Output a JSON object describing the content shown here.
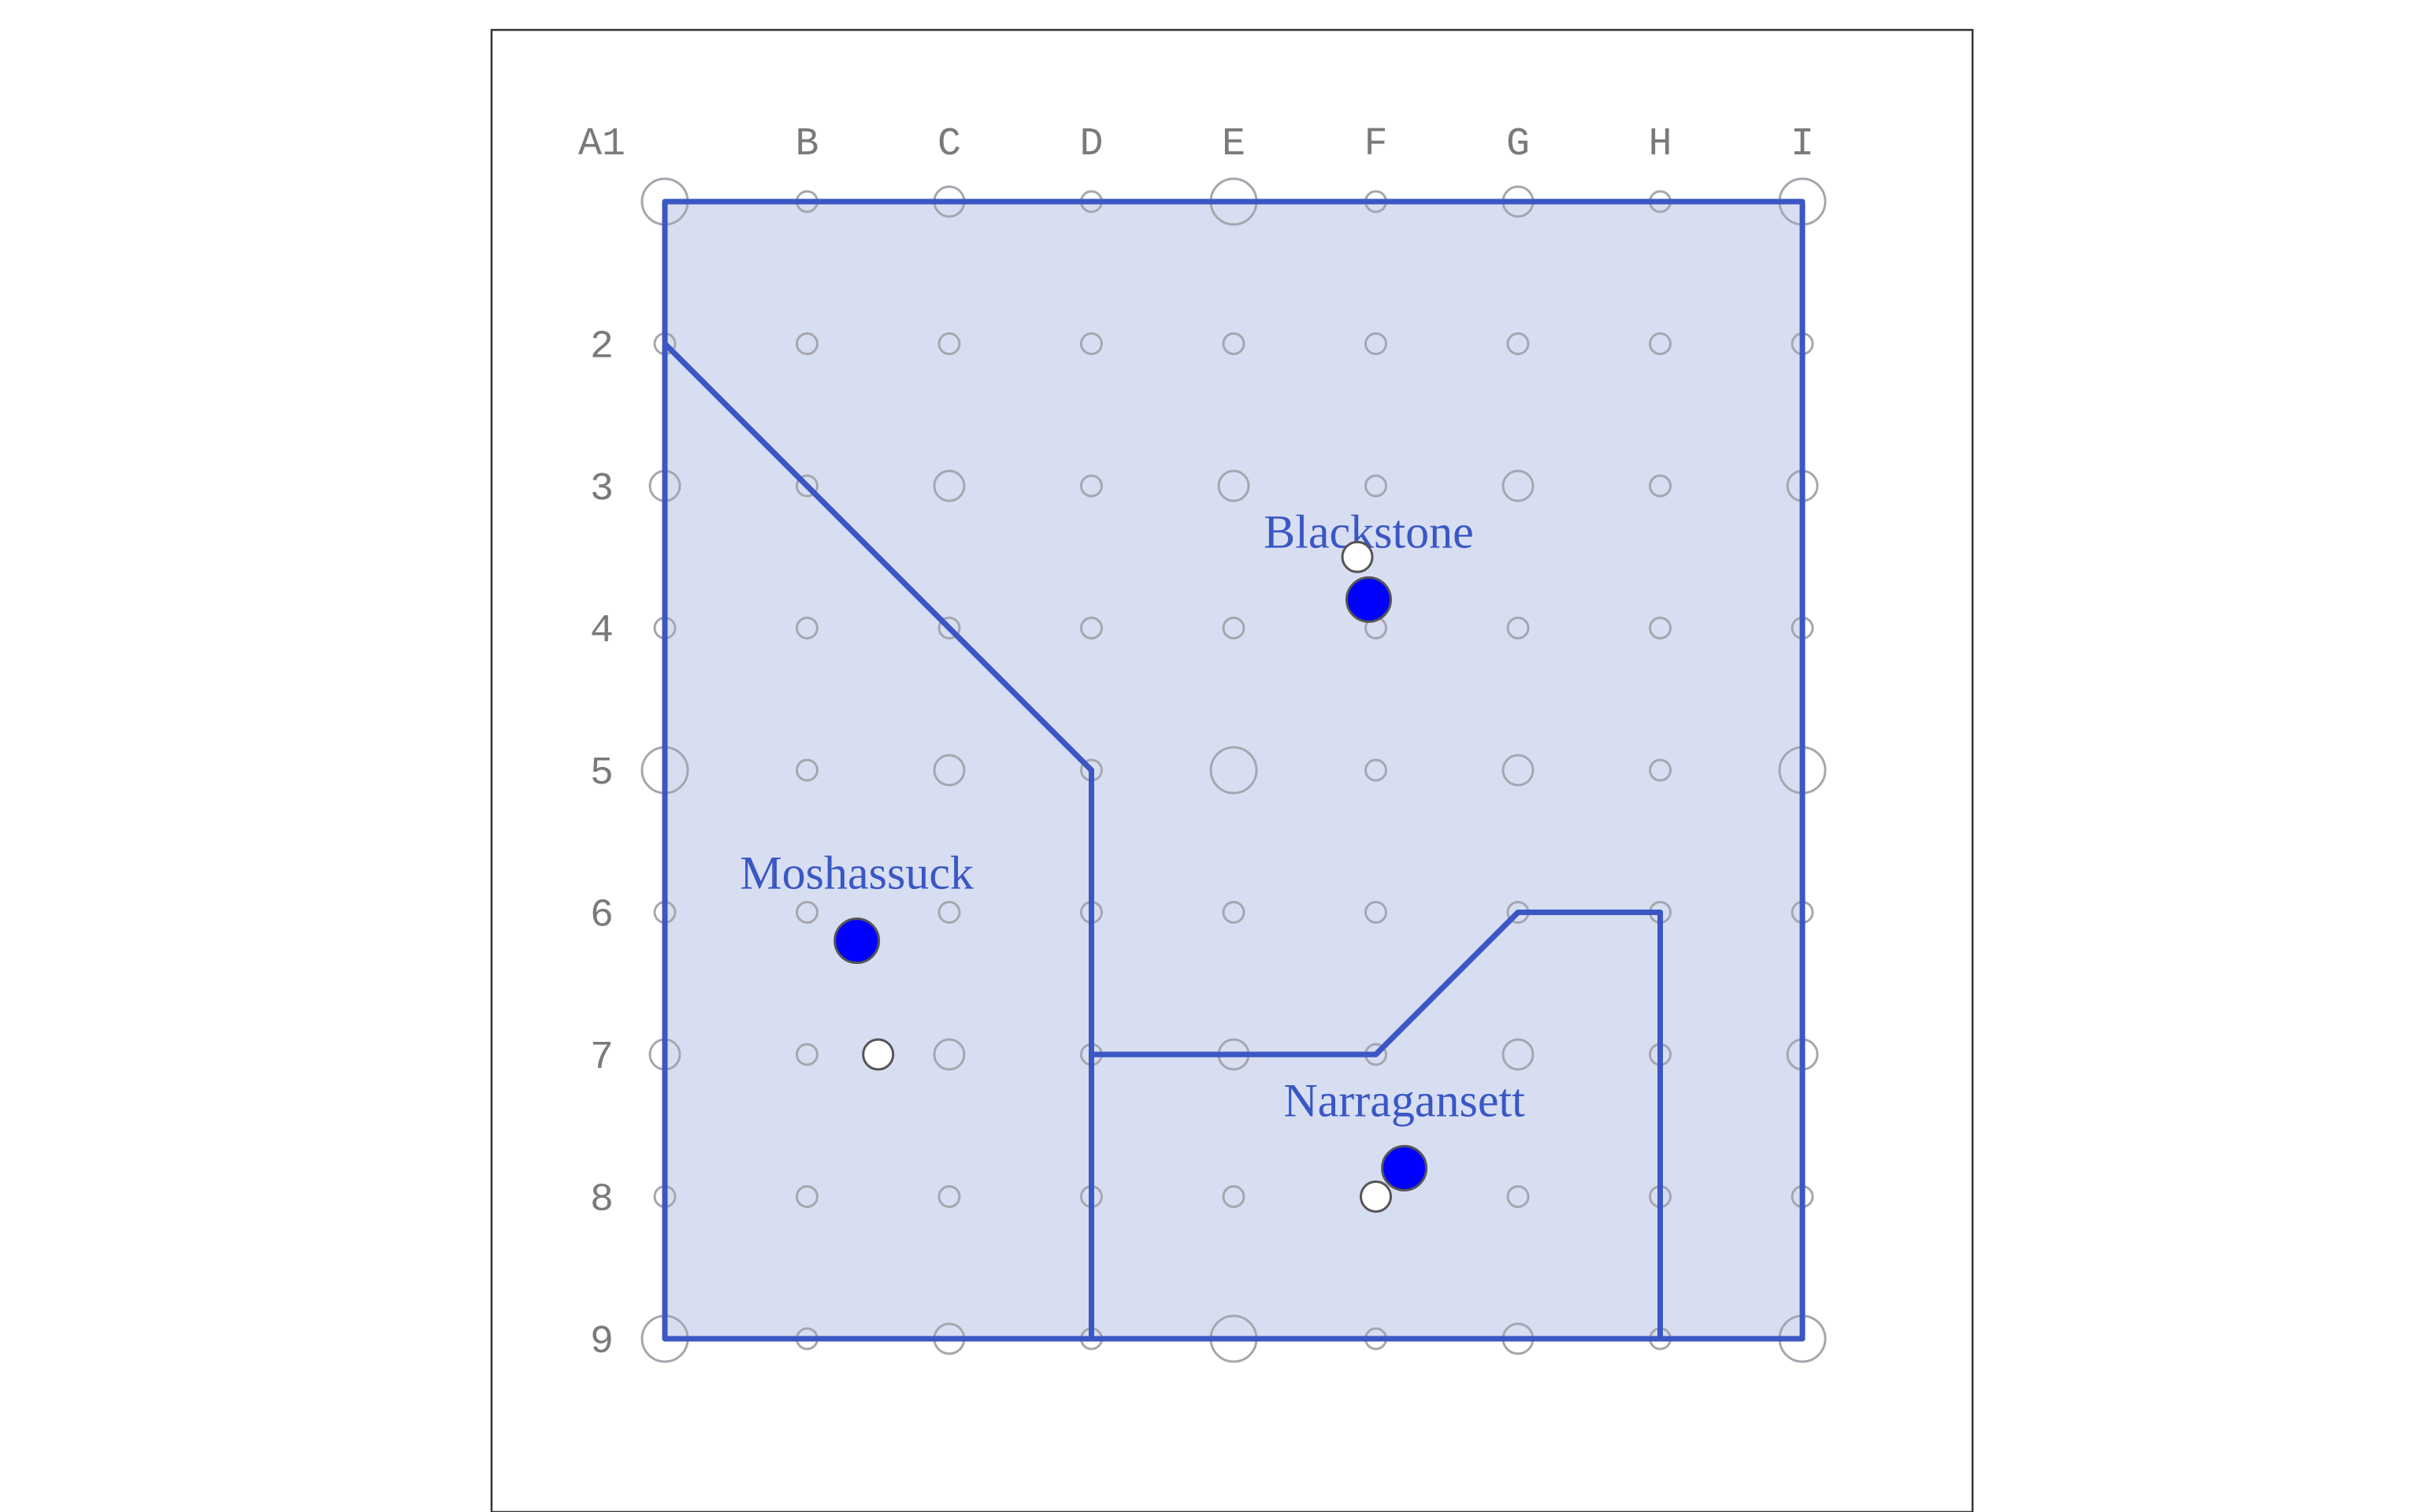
{
  "columns": [
    "A1",
    "B",
    "C",
    "D",
    "E",
    "F",
    "G",
    "H",
    "I"
  ],
  "rows": [
    "",
    "2",
    "3",
    "4",
    "5",
    "6",
    "7",
    "8",
    "9"
  ],
  "colors": {
    "region_fill": "#d8def2",
    "region_stroke": "#3a57c4",
    "grid_circle": "#a6a6ae",
    "centroid": "#0000ff",
    "marker": "#ffffff",
    "label": "#3a57c4",
    "frame": "#333333"
  },
  "grid": {
    "large_circle_every": 4,
    "medium_circle_every": 2
  },
  "regions": [
    {
      "name": "Moshassuck",
      "label": "Moshassuck",
      "boundary": [
        [
          1,
          2
        ],
        [
          4,
          5
        ],
        [
          4,
          9
        ],
        [
          1,
          9
        ]
      ],
      "centroid": [
        2.35,
        6.2
      ],
      "marker": [
        2.5,
        7
      ]
    },
    {
      "name": "Blackstone",
      "label": "Blackstone",
      "boundary": [
        [
          1,
          1
        ],
        [
          9,
          1
        ],
        [
          9,
          9
        ],
        [
          8,
          9
        ],
        [
          8,
          6
        ],
        [
          7,
          6
        ],
        [
          6,
          7
        ],
        [
          4,
          7
        ],
        [
          4,
          5
        ],
        [
          1,
          2
        ]
      ],
      "centroid": [
        5.95,
        3.8
      ],
      "marker": [
        5.87,
        3.5
      ]
    },
    {
      "name": "Narragansett",
      "label": "Narragansett",
      "boundary": [
        [
          4,
          7
        ],
        [
          6,
          7
        ],
        [
          7,
          6
        ],
        [
          8,
          6
        ],
        [
          8,
          9
        ],
        [
          4,
          9
        ]
      ],
      "centroid": [
        6.2,
        7.8
      ],
      "marker": [
        6,
        8
      ]
    }
  ]
}
